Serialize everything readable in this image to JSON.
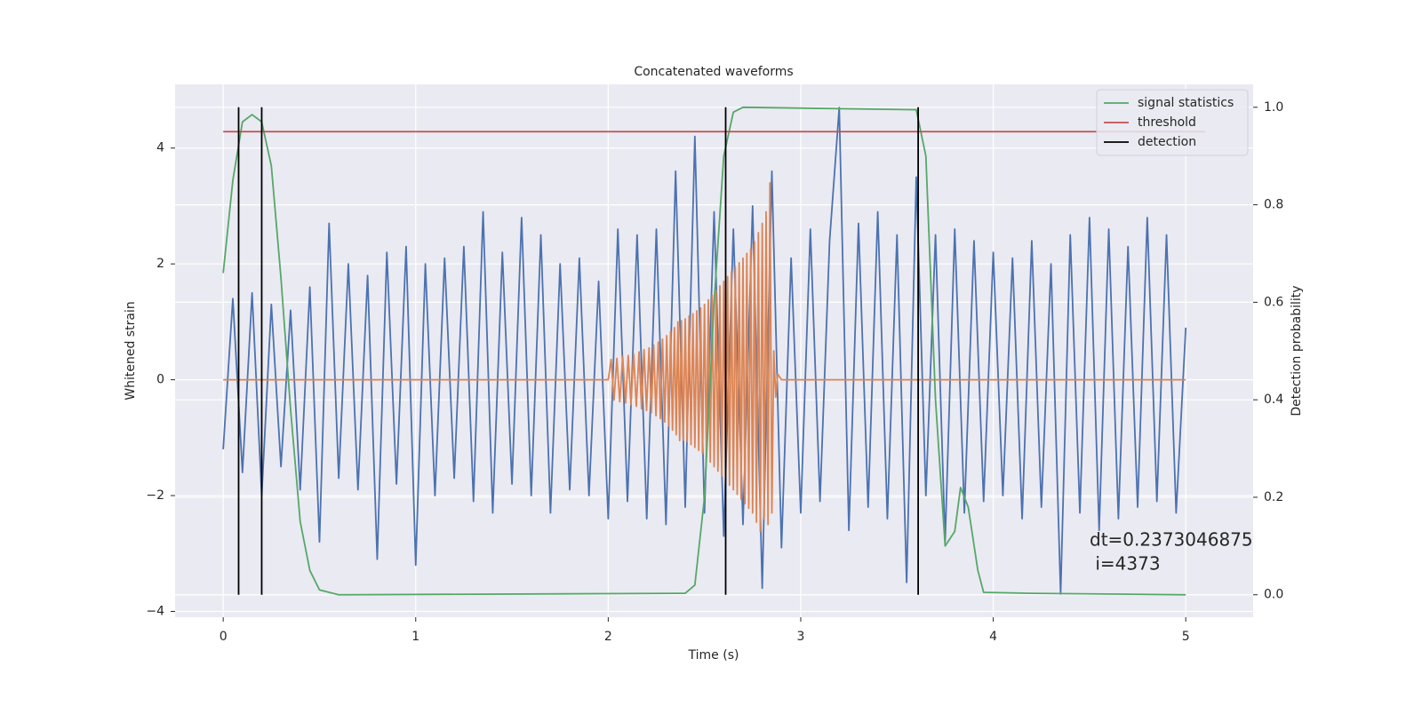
{
  "chart_data": {
    "type": "line",
    "title": "Concatenated waveforms",
    "xlabel": "Time (s)",
    "ylabel": "Whitened strain",
    "y2label": "Detection probability",
    "annotation": [
      "dt=0.2373046875",
      " i=4373"
    ],
    "xlim": [
      -0.25,
      5.35
    ],
    "xticks": [
      0,
      1,
      2,
      3,
      4,
      5
    ],
    "ylim": [
      -4.1,
      5.1
    ],
    "yticks": [
      -4,
      -2,
      0,
      2,
      4
    ],
    "y2lim": [
      -0.046,
      1.047
    ],
    "y2ticks": [
      {
        "value": 0,
        "label": "0.0"
      },
      0.2,
      0.4,
      0.6,
      0.8,
      {
        "value": 1,
        "label": "1.0"
      }
    ],
    "grid": true,
    "legend": "upper right",
    "series": [
      {
        "color": "#4c72b0",
        "x": [
          0,
          0.05,
          0.1,
          0.15,
          0.2,
          0.25,
          0.3,
          0.35,
          0.4,
          0.45,
          0.5,
          0.55,
          0.6,
          0.65,
          0.7,
          0.75,
          0.8,
          0.85,
          0.9,
          0.95,
          1.0,
          1.05,
          1.1,
          1.15,
          1.2,
          1.25,
          1.3,
          1.35,
          1.4,
          1.45,
          1.5,
          1.55,
          1.6,
          1.65,
          1.7,
          1.75,
          1.8,
          1.85,
          1.9,
          1.95,
          2.0,
          2.05,
          2.1,
          2.15,
          2.2,
          2.25,
          2.3,
          2.35,
          2.4,
          2.45,
          2.5,
          2.55,
          2.6,
          2.65,
          2.7,
          2.75,
          2.8,
          2.85,
          2.9,
          2.95,
          3.0,
          3.05,
          3.1,
          3.15,
          3.2,
          3.25,
          3.3,
          3.35,
          3.4,
          3.45,
          3.5,
          3.55,
          3.6,
          3.65,
          3.7,
          3.75,
          3.8,
          3.85,
          3.9,
          3.95,
          4.0,
          4.05,
          4.1,
          4.15,
          4.2,
          4.25,
          4.3,
          4.35,
          4.4,
          4.45,
          4.5,
          4.55,
          4.6,
          4.65,
          4.7,
          4.75,
          4.8,
          4.85,
          4.9,
          4.95,
          5.0
        ],
        "values": [
          -1.2,
          1.4,
          -1.6,
          1.5,
          -2.0,
          1.3,
          -1.5,
          1.2,
          -1.9,
          1.6,
          -2.8,
          2.7,
          -1.7,
          2.0,
          -1.9,
          1.8,
          -3.1,
          2.2,
          -1.8,
          2.3,
          -3.2,
          2.0,
          -2.0,
          2.1,
          -1.7,
          2.3,
          -2.1,
          2.9,
          -2.3,
          2.2,
          -1.8,
          2.8,
          -2.0,
          2.5,
          -2.3,
          2.0,
          -1.9,
          2.1,
          -2.0,
          1.7,
          -2.4,
          2.6,
          -2.1,
          2.5,
          -2.4,
          2.6,
          -2.5,
          3.6,
          -2.2,
          4.2,
          -2.3,
          2.9,
          -2.7,
          2.6,
          -2.5,
          3.0,
          -3.6,
          3.6,
          -2.9,
          2.1,
          -2.3,
          2.6,
          -2.1,
          2.4,
          4.7,
          -2.6,
          2.7,
          -2.2,
          2.9,
          -2.4,
          2.5,
          -3.5,
          3.5,
          -2.0,
          2.5,
          -2.8,
          2.6,
          -2.3,
          2.4,
          -2.1,
          2.2,
          -2.0,
          2.1,
          -2.4,
          2.4,
          -2.2,
          2.0,
          -3.7,
          2.5,
          -2.3,
          2.8,
          -2.6,
          2.6,
          -2.4,
          2.3,
          -2.2,
          2.8,
          -2.1,
          2.5,
          -2.3,
          0.9
        ]
      },
      {
        "color": "#dd8452",
        "x": [
          0,
          2.0,
          2.015,
          2.03,
          2.045,
          2.06,
          2.075,
          2.09,
          2.104,
          2.118,
          2.132,
          2.146,
          2.16,
          2.173,
          2.186,
          2.199,
          2.212,
          2.224,
          2.236,
          2.248,
          2.26,
          2.271,
          2.282,
          2.293,
          2.304,
          2.314,
          2.324,
          2.334,
          2.344,
          2.353,
          2.362,
          2.371,
          2.38,
          2.39,
          2.4,
          2.41,
          2.42,
          2.43,
          2.44,
          2.45,
          2.46,
          2.47,
          2.48,
          2.49,
          2.5,
          2.51,
          2.52,
          2.53,
          2.54,
          2.55,
          2.56,
          2.57,
          2.58,
          2.59,
          2.6,
          2.61,
          2.62,
          2.63,
          2.64,
          2.65,
          2.66,
          2.67,
          2.68,
          2.69,
          2.7,
          2.71,
          2.72,
          2.73,
          2.74,
          2.75,
          2.76,
          2.77,
          2.78,
          2.79,
          2.8,
          2.81,
          2.82,
          2.83,
          2.84,
          2.85,
          2.86,
          2.87,
          2.88,
          2.9,
          5.0
        ],
        "values": [
          0,
          0,
          0.35,
          -0.35,
          0.37,
          -0.38,
          0.4,
          -0.4,
          0.42,
          -0.43,
          0.45,
          -0.46,
          0.48,
          -0.5,
          0.52,
          -0.53,
          0.55,
          -0.57,
          0.6,
          -0.62,
          0.65,
          -0.67,
          0.7,
          -0.73,
          0.76,
          -0.8,
          0.83,
          -0.87,
          0.9,
          -0.95,
          1.0,
          -1.05,
          1.02,
          -1.04,
          1.05,
          -1.07,
          1.1,
          -1.12,
          1.14,
          -1.17,
          1.19,
          -1.22,
          1.24,
          -1.27,
          1.3,
          -1.34,
          1.38,
          -1.42,
          1.46,
          -1.5,
          1.54,
          -1.58,
          1.62,
          -1.66,
          1.7,
          -1.74,
          1.78,
          -1.82,
          1.86,
          -1.9,
          1.94,
          -1.98,
          2.02,
          -2.06,
          2.1,
          -2.14,
          2.18,
          -2.22,
          2.26,
          -2.3,
          2.38,
          -2.46,
          2.54,
          -2.62,
          2.7,
          -2.4,
          2.9,
          -2.5,
          3.4,
          -2.3,
          0.5,
          -0.3,
          0.1,
          0,
          0
        ]
      },
      {
        "name": "signal statistics",
        "color": "#55a868",
        "axis": "y2",
        "x": [
          0,
          0.05,
          0.1,
          0.15,
          0.2,
          0.25,
          0.3,
          0.35,
          0.4,
          0.45,
          0.5,
          0.6,
          2.4,
          2.45,
          2.5,
          2.55,
          2.6,
          2.65,
          2.7,
          3.6,
          3.65,
          3.7,
          3.75,
          3.8,
          3.83,
          3.87,
          3.92,
          3.95,
          4.2,
          5.0
        ],
        "values": [
          0.66,
          0.85,
          0.97,
          0.985,
          0.97,
          0.88,
          0.65,
          0.38,
          0.15,
          0.05,
          0.01,
          0,
          0.003,
          0.02,
          0.2,
          0.6,
          0.9,
          0.99,
          1.0,
          0.995,
          0.9,
          0.4,
          0.1,
          0.13,
          0.22,
          0.18,
          0.05,
          0.005,
          0.003,
          0
        ]
      },
      {
        "name": "threshold",
        "color": "#c44e52",
        "axis": "y2",
        "x": [
          0,
          5.1
        ],
        "values": [
          0.95,
          0.95
        ]
      },
      {
        "name": "detection",
        "color": "#000000",
        "axis": "y2",
        "x": [
          0.08,
          0.08,
          0.08,
          0.2,
          0.2,
          0.2,
          2.61,
          2.61,
          2.61,
          3.61,
          3.61
        ],
        "values": [
          0,
          1,
          null,
          0,
          1,
          null,
          0,
          1,
          null,
          0,
          1
        ]
      }
    ]
  }
}
